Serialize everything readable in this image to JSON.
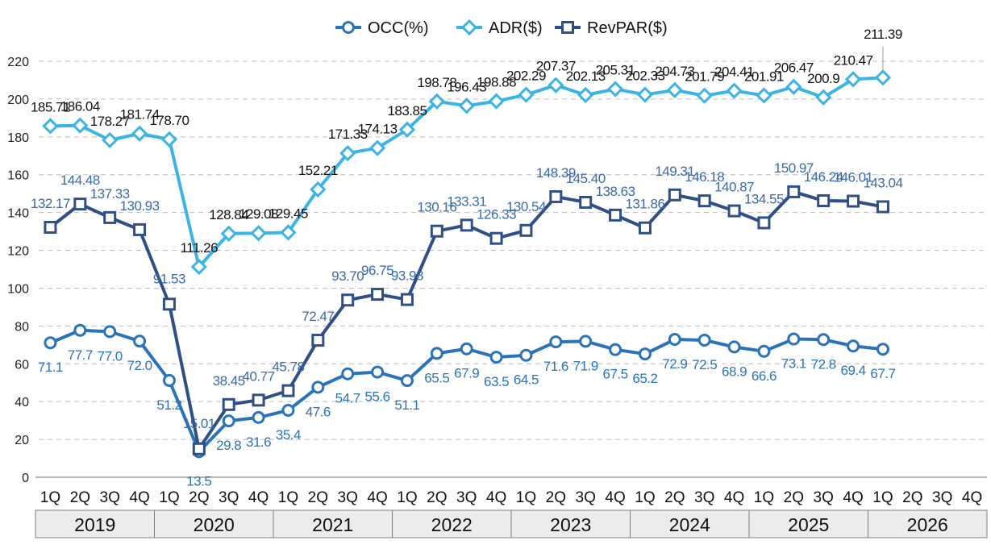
{
  "chart_data": {
    "type": "line",
    "ylim": [
      0,
      220
    ],
    "yticks": [
      "0",
      "20",
      "40",
      "60",
      "80",
      "100",
      "120",
      "140",
      "160",
      "180",
      "200",
      "220"
    ],
    "grid": true,
    "legend_position": "top",
    "quarters": [
      "1Q",
      "2Q",
      "3Q",
      "4Q",
      "1Q",
      "2Q",
      "3Q",
      "4Q",
      "1Q",
      "2Q",
      "3Q",
      "4Q",
      "1Q",
      "2Q",
      "3Q",
      "4Q",
      "1Q",
      "2Q",
      "3Q",
      "4Q",
      "1Q",
      "2Q",
      "3Q",
      "4Q",
      "1Q",
      "2Q",
      "3Q",
      "4Q",
      "1Q",
      "2Q",
      "3Q",
      "4Q"
    ],
    "years": [
      "2019",
      "2020",
      "2021",
      "2022",
      "2023",
      "2024",
      "2025",
      "2026"
    ],
    "series": [
      {
        "name": "OCC(%)",
        "color": "#2b73b8",
        "marker": "circle",
        "values": [
          71.1,
          77.7,
          77.0,
          72.0,
          51.2,
          13.5,
          29.8,
          31.6,
          35.4,
          47.6,
          54.7,
          55.6,
          51.1,
          65.5,
          67.9,
          63.5,
          64.5,
          71.6,
          71.9,
          67.5,
          65.2,
          72.9,
          72.5,
          68.9,
          66.6,
          73.1,
          72.8,
          69.4,
          67.7
        ],
        "labels": [
          "71.1",
          "77.7",
          "77.0",
          "72.0",
          "51.2",
          "13.5",
          "29.8",
          "31.6",
          "35.4",
          "47.6",
          "54.7",
          "55.6",
          "51.1",
          "65.5",
          "67.9",
          "63.5",
          "64.5",
          "71.6",
          "71.9",
          "67.5",
          "65.2",
          "72.9",
          "72.5",
          "68.9",
          "66.6",
          "73.1",
          "72.8",
          "69.4",
          "67.7"
        ]
      },
      {
        "name": "ADR($)",
        "color": "#3bb4e3",
        "marker": "diamond",
        "values": [
          185.71,
          186.04,
          178.27,
          181.74,
          178.7,
          111.26,
          128.84,
          129.08,
          129.45,
          152.21,
          171.33,
          174.13,
          183.85,
          198.78,
          196.43,
          198.88,
          202.29,
          207.37,
          202.13,
          205.31,
          202.33,
          204.73,
          201.79,
          204.41,
          201.91,
          206.47,
          200.9,
          210.47,
          211.39
        ],
        "labels": [
          "185.71",
          "186.04",
          "178.27",
          "181.74",
          "178.70",
          "111.26",
          "128.84",
          "129.08",
          "129.45",
          "152.21",
          "171.33",
          "174.13",
          "183.85",
          "198.78",
          "196.43",
          "198.88",
          "202.29",
          "207.37",
          "202.13",
          "205.31",
          "202.33",
          "204.73",
          "201.79",
          "204.41",
          "201.91",
          "206.47",
          "200.9",
          "210.47",
          "211.39"
        ]
      },
      {
        "name": "RevPAR($)",
        "color": "#2f4f85",
        "marker": "square",
        "values": [
          132.17,
          144.48,
          137.33,
          130.93,
          91.53,
          15.01,
          38.45,
          40.77,
          45.78,
          72.47,
          93.7,
          96.75,
          93.98,
          130.16,
          133.31,
          126.33,
          130.54,
          148.39,
          145.4,
          138.63,
          131.86,
          149.31,
          146.18,
          140.87,
          134.55,
          150.97,
          146.24,
          146.01,
          143.04
        ],
        "labels": [
          "132.17",
          "144.48",
          "137.33",
          "130.93",
          "91.53",
          "15.01",
          "38.45",
          "40.77",
          "45.78",
          "72.47",
          "93.70",
          "96.75",
          "93.98",
          "130.16",
          "133.31",
          "126.33",
          "130.54",
          "148.39",
          "145.40",
          "138.63",
          "131.86",
          "149.31",
          "146.18",
          "140.87",
          "134.55",
          "150.97",
          "146.24",
          "146.01",
          "143.04"
        ]
      }
    ]
  }
}
